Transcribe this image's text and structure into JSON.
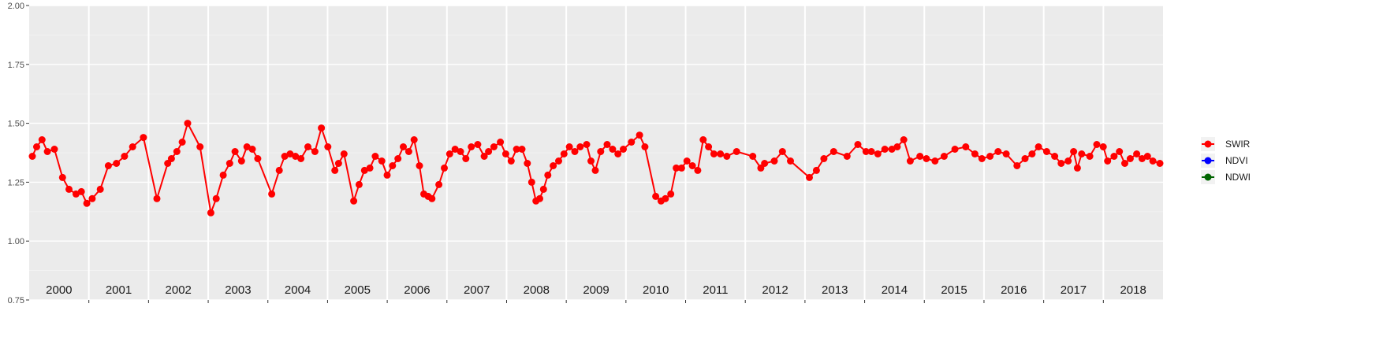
{
  "chart_data": {
    "type": "line",
    "title": "",
    "xlabel": "",
    "ylabel": "",
    "ylim": [
      0.75,
      2.0
    ],
    "y_ticks": [
      "0.75",
      "1.00",
      "1.25",
      "1.50",
      "1.75",
      "2.00"
    ],
    "year_labels": [
      "2000",
      "2001",
      "2002",
      "2003",
      "2004",
      "2005",
      "2006",
      "2007",
      "2008",
      "2009",
      "2010",
      "2011",
      "2012",
      "2013",
      "2014",
      "2015",
      "2016",
      "2017",
      "2018"
    ],
    "year_start": 2000,
    "year_end": 2019,
    "grid": true,
    "panel_background": "#ebebeb",
    "legend_position": "right",
    "legend": [
      {
        "name": "SWIR",
        "color": "#ff0000"
      },
      {
        "name": "NDVI",
        "color": "#0000ff"
      },
      {
        "name": "NDWI",
        "color": "#006400"
      }
    ],
    "series": [
      {
        "name": "SWIR",
        "color": "#ff0000",
        "points": [
          [
            2000.04,
            1.36
          ],
          [
            2000.12,
            1.4
          ],
          [
            2000.22,
            1.43
          ],
          [
            2000.32,
            1.38
          ],
          [
            2000.45,
            1.39
          ],
          [
            2000.6,
            1.27
          ],
          [
            2000.72,
            1.22
          ],
          [
            2000.85,
            1.2
          ],
          [
            2000.95,
            1.21
          ],
          [
            2001.05,
            1.16
          ],
          [
            2001.15,
            1.18
          ],
          [
            2001.3,
            1.22
          ],
          [
            2001.45,
            1.32
          ],
          [
            2001.6,
            1.33
          ],
          [
            2001.75,
            1.36
          ],
          [
            2001.9,
            1.4
          ],
          [
            2002.1,
            1.44
          ],
          [
            2002.35,
            1.18
          ],
          [
            2002.55,
            1.33
          ],
          [
            2002.62,
            1.35
          ],
          [
            2002.72,
            1.38
          ],
          [
            2002.82,
            1.42
          ],
          [
            2002.92,
            1.5
          ],
          [
            2003.15,
            1.4
          ],
          [
            2003.35,
            1.12
          ],
          [
            2003.45,
            1.18
          ],
          [
            2003.58,
            1.28
          ],
          [
            2003.7,
            1.33
          ],
          [
            2003.8,
            1.38
          ],
          [
            2003.92,
            1.34
          ],
          [
            2004.02,
            1.4
          ],
          [
            2004.12,
            1.39
          ],
          [
            2004.22,
            1.35
          ],
          [
            2004.48,
            1.2
          ],
          [
            2004.62,
            1.3
          ],
          [
            2004.72,
            1.36
          ],
          [
            2004.82,
            1.37
          ],
          [
            2004.92,
            1.36
          ],
          [
            2005.02,
            1.35
          ],
          [
            2005.15,
            1.4
          ],
          [
            2005.28,
            1.38
          ],
          [
            2005.4,
            1.48
          ],
          [
            2005.52,
            1.4
          ],
          [
            2005.65,
            1.3
          ],
          [
            2005.72,
            1.33
          ],
          [
            2005.82,
            1.37
          ],
          [
            2006.0,
            1.17
          ],
          [
            2006.1,
            1.24
          ],
          [
            2006.2,
            1.3
          ],
          [
            2006.3,
            1.31
          ],
          [
            2006.4,
            1.36
          ],
          [
            2006.52,
            1.34
          ],
          [
            2006.62,
            1.28
          ],
          [
            2006.72,
            1.32
          ],
          [
            2006.82,
            1.35
          ],
          [
            2006.92,
            1.4
          ],
          [
            2007.02,
            1.38
          ],
          [
            2007.12,
            1.43
          ],
          [
            2007.22,
            1.32
          ],
          [
            2007.3,
            1.2
          ],
          [
            2007.38,
            1.19
          ],
          [
            2007.45,
            1.18
          ],
          [
            2007.58,
            1.24
          ],
          [
            2007.68,
            1.31
          ],
          [
            2007.78,
            1.37
          ],
          [
            2007.88,
            1.39
          ],
          [
            2007.98,
            1.38
          ],
          [
            2008.08,
            1.35
          ],
          [
            2008.18,
            1.4
          ],
          [
            2008.3,
            1.41
          ],
          [
            2008.42,
            1.36
          ],
          [
            2008.5,
            1.38
          ],
          [
            2008.6,
            1.4
          ],
          [
            2008.72,
            1.42
          ],
          [
            2008.82,
            1.37
          ],
          [
            2008.92,
            1.34
          ],
          [
            2009.02,
            1.39
          ],
          [
            2009.12,
            1.39
          ],
          [
            2009.22,
            1.33
          ],
          [
            2009.3,
            1.25
          ],
          [
            2009.38,
            1.17
          ],
          [
            2009.45,
            1.18
          ],
          [
            2009.52,
            1.22
          ],
          [
            2009.6,
            1.28
          ],
          [
            2009.7,
            1.32
          ],
          [
            2009.8,
            1.34
          ],
          [
            2009.9,
            1.37
          ],
          [
            2010.0,
            1.4
          ],
          [
            2010.1,
            1.38
          ],
          [
            2010.2,
            1.4
          ],
          [
            2010.32,
            1.41
          ],
          [
            2010.4,
            1.34
          ],
          [
            2010.48,
            1.3
          ],
          [
            2010.58,
            1.38
          ],
          [
            2010.7,
            1.41
          ],
          [
            2010.8,
            1.39
          ],
          [
            2010.9,
            1.37
          ],
          [
            2011.0,
            1.39
          ],
          [
            2011.15,
            1.42
          ],
          [
            2011.3,
            1.45
          ],
          [
            2011.4,
            1.4
          ],
          [
            2011.6,
            1.19
          ],
          [
            2011.7,
            1.17
          ],
          [
            2011.78,
            1.18
          ],
          [
            2011.88,
            1.2
          ],
          [
            2011.98,
            1.31
          ],
          [
            2012.08,
            1.31
          ],
          [
            2012.18,
            1.34
          ],
          [
            2012.28,
            1.32
          ],
          [
            2012.38,
            1.3
          ],
          [
            2012.48,
            1.43
          ],
          [
            2012.58,
            1.4
          ],
          [
            2012.68,
            1.37
          ],
          [
            2012.8,
            1.37
          ],
          [
            2012.92,
            1.36
          ],
          [
            2013.1,
            1.38
          ],
          [
            2013.4,
            1.36
          ],
          [
            2013.55,
            1.31
          ],
          [
            2013.62,
            1.33
          ],
          [
            2013.8,
            1.34
          ],
          [
            2013.95,
            1.38
          ],
          [
            2014.1,
            1.34
          ],
          [
            2014.45,
            1.27
          ],
          [
            2014.58,
            1.3
          ],
          [
            2014.72,
            1.35
          ],
          [
            2014.9,
            1.38
          ],
          [
            2015.15,
            1.36
          ],
          [
            2015.35,
            1.41
          ],
          [
            2015.5,
            1.38
          ],
          [
            2015.6,
            1.38
          ],
          [
            2015.72,
            1.37
          ],
          [
            2015.85,
            1.39
          ],
          [
            2015.98,
            1.39
          ],
          [
            2016.08,
            1.4
          ],
          [
            2016.2,
            1.43
          ],
          [
            2016.32,
            1.34
          ],
          [
            2016.5,
            1.36
          ],
          [
            2016.62,
            1.35
          ],
          [
            2016.78,
            1.34
          ],
          [
            2016.95,
            1.36
          ],
          [
            2017.15,
            1.39
          ],
          [
            2017.35,
            1.4
          ],
          [
            2017.52,
            1.37
          ],
          [
            2017.65,
            1.35
          ],
          [
            2017.8,
            1.36
          ],
          [
            2017.95,
            1.38
          ],
          [
            2018.1,
            1.37
          ],
          [
            2018.3,
            1.32
          ],
          [
            2018.45,
            1.35
          ],
          [
            2018.58,
            1.37
          ],
          [
            2018.7,
            1.4
          ],
          [
            2018.85,
            1.38
          ],
          [
            2019.0,
            1.36
          ],
          [
            2019.12,
            1.33
          ],
          [
            2019.25,
            1.34
          ],
          [
            2019.35,
            1.38
          ],
          [
            2019.42,
            1.31
          ],
          [
            2019.5,
            1.37
          ],
          [
            2019.65,
            1.36
          ],
          [
            2019.78,
            1.41
          ],
          [
            2019.9,
            1.4
          ],
          [
            2019.98,
            1.34
          ],
          [
            2020.1,
            1.36
          ],
          [
            2020.2,
            1.38
          ],
          [
            2020.3,
            1.33
          ],
          [
            2020.4,
            1.35
          ],
          [
            2020.52,
            1.37
          ],
          [
            2020.62,
            1.35
          ],
          [
            2020.72,
            1.36
          ],
          [
            2020.82,
            1.34
          ],
          [
            2020.95,
            1.33
          ]
        ]
      }
    ]
  }
}
